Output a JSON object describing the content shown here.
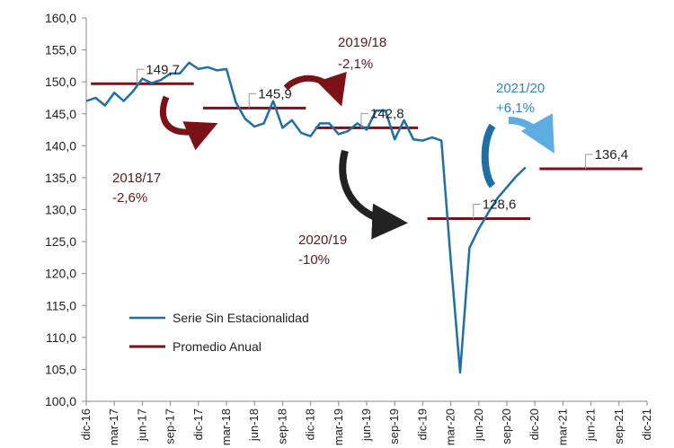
{
  "chart_data": {
    "type": "line",
    "title": "",
    "xlabel": "",
    "ylabel": "",
    "ylim": [
      100,
      160
    ],
    "yticks": [
      "100,0",
      "105,0",
      "110,0",
      "115,0",
      "120,0",
      "125,0",
      "130,0",
      "135,0",
      "140,0",
      "145,0",
      "150,0",
      "155,0",
      "160,0"
    ],
    "xticks": [
      "dic-16",
      "mar-17",
      "jun-17",
      "sep-17",
      "dic-17",
      "mar-18",
      "jun-18",
      "sep-18",
      "dic-18",
      "mar-19",
      "jun-19",
      "sep-19",
      "dic-19",
      "mar-20",
      "jun-20",
      "sep-20",
      "dic-20",
      "mar-21",
      "jun-21",
      "sep-21",
      "dic-21"
    ],
    "series": [
      {
        "name": "Serie Sin Estacionalidad",
        "color": "#1f6fa7",
        "x": [
          0,
          1,
          2,
          3,
          4,
          5,
          6,
          7,
          8,
          9,
          10,
          11,
          12,
          13,
          14,
          15,
          16,
          17,
          18,
          19,
          20,
          21,
          22,
          23,
          24,
          25,
          26,
          27,
          28,
          29,
          30,
          31,
          32,
          33,
          34,
          35,
          36,
          37,
          38,
          39,
          40,
          41,
          42,
          43,
          44,
          45,
          46,
          47
        ],
        "values": [
          147.0,
          147.5,
          146.3,
          148.3,
          147.0,
          148.5,
          150.5,
          149.8,
          150.3,
          151.3,
          151.3,
          153.0,
          152.0,
          152.3,
          151.8,
          152.0,
          146.8,
          144.2,
          143.0,
          143.5,
          147.0,
          142.8,
          144.0,
          142.0,
          141.5,
          143.5,
          143.5,
          141.8,
          142.3,
          143.5,
          142.5,
          145.5,
          145.5,
          141.0,
          144.0,
          141.0,
          140.8,
          141.3,
          140.8,
          122.0,
          104.5,
          124.0,
          127.0,
          129.5,
          131.8,
          133.5,
          135.2,
          136.6
        ]
      },
      {
        "name": "Promedio Anual",
        "color": "#7a1218",
        "segments": [
          {
            "start": 0.5,
            "end": 11.5,
            "value": 149.7,
            "label": "149,7"
          },
          {
            "start": 12.5,
            "end": 23.5,
            "value": 145.9,
            "label": "145,9"
          },
          {
            "start": 24.5,
            "end": 35.5,
            "value": 142.8,
            "label": "142,8"
          },
          {
            "start": 36.5,
            "end": 47.5,
            "value": 128.6,
            "label": "128,6"
          },
          {
            "start": 48.5,
            "end": 59.5,
            "value": 136.4,
            "label": "136,4"
          }
        ]
      }
    ],
    "annotations": [
      {
        "lines": [
          "2018/17",
          "-2,6%"
        ],
        "color": "#5a1a1e"
      },
      {
        "lines": [
          "2019/18",
          "-2,1%"
        ],
        "color": "#5a1a1e"
      },
      {
        "lines": [
          "2020/19",
          "-10%"
        ],
        "color": "#5a1a1e"
      },
      {
        "lines": [
          "2021/20",
          "+6,1%"
        ],
        "color": "#2e86c1"
      }
    ],
    "legend": {
      "placement": "bottom-left"
    },
    "grid": false
  }
}
